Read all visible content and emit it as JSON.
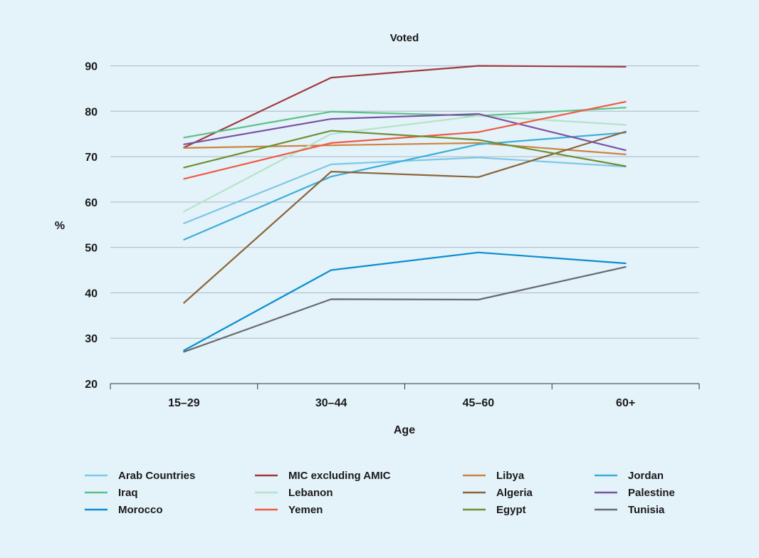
{
  "chart_data": {
    "type": "line",
    "title": "Voted",
    "xlabel": "Age",
    "ylabel": "%",
    "categories": [
      "15–29",
      "30–44",
      "45–60",
      "60+"
    ],
    "ylim": [
      20,
      95
    ],
    "yticks": [
      20,
      30,
      40,
      50,
      60,
      70,
      80,
      90
    ],
    "grid": true,
    "legend_position": "bottom",
    "series": [
      {
        "name": "Arab Countries",
        "color": "#7cc8e8",
        "values": [
          55.3,
          68.3,
          69.8,
          67.8
        ]
      },
      {
        "name": "MIC excluding AMIC",
        "color": "#a03a3a",
        "values": [
          72.0,
          87.4,
          90.0,
          89.8
        ]
      },
      {
        "name": "Libya",
        "color": "#cc8440",
        "values": [
          71.9,
          72.5,
          73.0,
          70.5
        ]
      },
      {
        "name": "Jordan",
        "color": "#3aaed8",
        "values": [
          51.7,
          65.6,
          72.7,
          75.3
        ]
      },
      {
        "name": "Iraq",
        "color": "#5cc08a",
        "values": [
          74.2,
          79.9,
          79.0,
          80.8
        ]
      },
      {
        "name": "Lebanon",
        "color": "#b5e3c8",
        "values": [
          57.9,
          75.0,
          79.0,
          77.0
        ]
      },
      {
        "name": "Algeria",
        "color": "#8b6437",
        "values": [
          37.8,
          66.7,
          65.5,
          75.5
        ]
      },
      {
        "name": "Palestine",
        "color": "#7a52a4",
        "values": [
          72.7,
          78.3,
          79.4,
          71.4
        ]
      },
      {
        "name": "Morocco",
        "color": "#0a8ed0",
        "values": [
          27.3,
          45.0,
          48.9,
          46.5
        ]
      },
      {
        "name": "Yemen",
        "color": "#ee5a42",
        "values": [
          65.1,
          73.0,
          75.4,
          82.1
        ]
      },
      {
        "name": "Egypt",
        "color": "#6f8f32",
        "values": [
          67.6,
          75.7,
          73.7,
          67.9
        ]
      },
      {
        "name": "Tunisia",
        "color": "#666b70",
        "values": [
          27.0,
          38.6,
          38.5,
          45.7
        ]
      }
    ]
  }
}
